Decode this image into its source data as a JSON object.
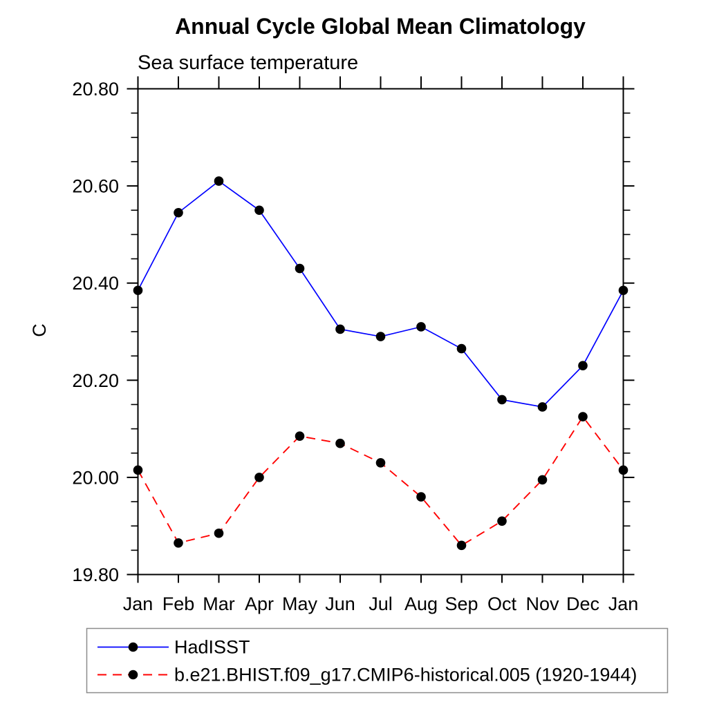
{
  "chart_data": {
    "type": "line",
    "title": "Annual Cycle Global Mean Climatology",
    "subtitle": "Sea surface temperature",
    "ylabel": "C",
    "xlabel": "",
    "categories": [
      "Jan",
      "Feb",
      "Mar",
      "Apr",
      "May",
      "Jun",
      "Jul",
      "Aug",
      "Sep",
      "Oct",
      "Nov",
      "Dec",
      "Jan"
    ],
    "ylim": [
      19.8,
      20.8
    ],
    "yticks": {
      "values": [
        20.8,
        20.6,
        20.4,
        20.2,
        20.0,
        19.8
      ],
      "labels": [
        "20.80",
        "20.60",
        "20.40",
        "20.20",
        "20.00",
        "19.80"
      ]
    },
    "yminor_step": 0.05,
    "grid": false,
    "legend_position": "bottom-left-boxed",
    "series": [
      {
        "name": "HadISST",
        "color": "#0000ff",
        "line_style": "solid",
        "marker": "filled-circle",
        "marker_color": "#000000",
        "values": [
          20.385,
          20.545,
          20.61,
          20.55,
          20.43,
          20.305,
          20.29,
          20.31,
          20.265,
          20.16,
          20.145,
          20.23,
          20.385
        ]
      },
      {
        "name": "b.e21.BHIST.f09_g17.CMIP6-historical.005 (1920-1944)",
        "color": "#ff0000",
        "line_style": "dashed",
        "marker": "filled-circle",
        "marker_color": "#000000",
        "values": [
          20.015,
          19.865,
          19.885,
          20.0,
          20.085,
          20.07,
          20.03,
          19.96,
          19.86,
          19.91,
          19.995,
          20.125,
          20.015
        ]
      }
    ]
  }
}
